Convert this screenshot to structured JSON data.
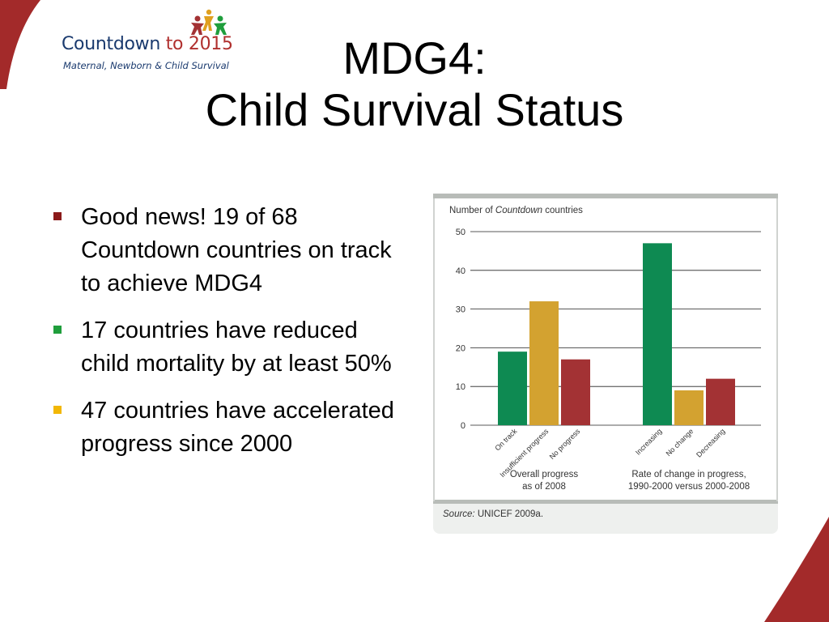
{
  "logo": {
    "name_part1": "Countdown",
    "name_part2": "to 2015",
    "tagline": "Maternal, Newborn & Child Survival"
  },
  "title": {
    "line1": "MDG4:",
    "line2": "Child Survival Status"
  },
  "bullets": [
    {
      "text": "Good news! 19 of 68 Countdown countries on track to achieve MDG4",
      "color": "#8b1a1a"
    },
    {
      "text": "17 countries have reduced child mortality by at least 50%",
      "color": "#1f9e3c"
    },
    {
      "text": "47 countries have accelerated progress since 2000",
      "color": "#f2b705"
    }
  ],
  "chart_data": {
    "type": "bar",
    "ylabel_prefix": "Number of ",
    "ylabel_italic": "Countdown",
    "ylabel_suffix": " countries",
    "ylim": [
      0,
      50
    ],
    "yticks": [
      0,
      10,
      20,
      30,
      40,
      50
    ],
    "grid": true,
    "groups": [
      {
        "label_line1": "Overall progress",
        "label_line2": "as of 2008",
        "bars": [
          {
            "category": "On track",
            "value": 19,
            "color": "#0e8a52"
          },
          {
            "category": "Insufficient progress",
            "value": 32,
            "color": "#d3a230"
          },
          {
            "category": "No progress",
            "value": 17,
            "color": "#a33234"
          }
        ]
      },
      {
        "label_line1": "Rate of change in progress,",
        "label_line2": "1990-2000 versus 2000-2008",
        "bars": [
          {
            "category": "Increasing",
            "value": 47,
            "color": "#0e8a52"
          },
          {
            "category": "No change",
            "value": 9,
            "color": "#d3a230"
          },
          {
            "category": "Decreasing",
            "value": 12,
            "color": "#a33234"
          }
        ]
      }
    ],
    "source_label": "Source:",
    "source_text": " UNICEF 2009a."
  },
  "colors": {
    "corner_accent": "#a32a2a",
    "logo_blue": "#1a3a6e",
    "chart_panel": "#eef0ee",
    "chart_border": "#b8bcb8"
  }
}
